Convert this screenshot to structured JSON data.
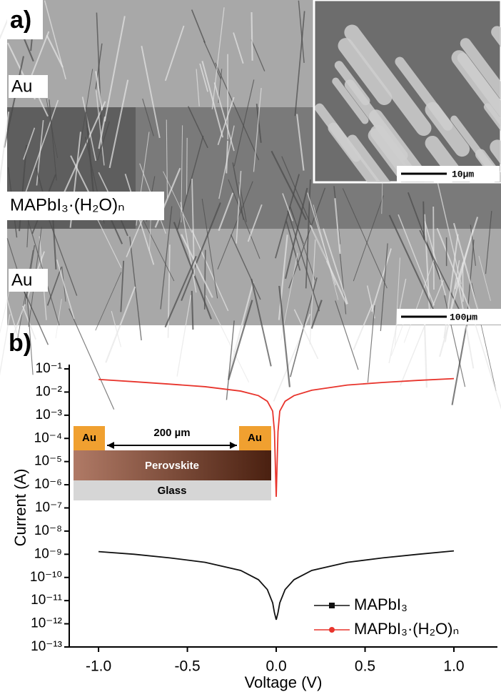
{
  "panel_a": {
    "label": "a)",
    "labels": [
      "Au",
      "MAPbI₃·(H₂O)ₙ",
      "Au"
    ],
    "inset_scale": "10µm",
    "scale": "100µm"
  },
  "chart_data": {
    "type": "line",
    "label": "b)",
    "x_label": "Voltage (V)",
    "y_label": "Current (A)",
    "x": [
      -1,
      -0.8,
      -0.6,
      -0.4,
      -0.2,
      -0.1,
      -0.05,
      -0.02,
      -0.01,
      0,
      0.01,
      0.02,
      0.05,
      0.1,
      0.2,
      0.4,
      0.6,
      0.8,
      1
    ],
    "series": [
      {
        "name": "MAPbI₃",
        "color": "#111111",
        "marker": "square",
        "values": [
          1.3e-09,
          1e-09,
          7e-10,
          4.5e-10,
          2e-10,
          8e-11,
          3e-11,
          8e-12,
          3e-12,
          1.5e-12,
          3e-12,
          8e-12,
          3e-11,
          8e-11,
          2e-10,
          4.5e-10,
          7e-10,
          1e-09,
          1.4e-09
        ]
      },
      {
        "name": "MAPbI₃·(H₂O)ₙ",
        "color": "#e8342c",
        "marker": "circle",
        "values": [
          0.035,
          0.028,
          0.022,
          0.017,
          0.011,
          0.007,
          0.004,
          0.0015,
          0.0002,
          3e-07,
          0.0002,
          0.0015,
          0.004,
          0.007,
          0.012,
          0.02,
          0.026,
          0.032,
          0.038
        ]
      }
    ],
    "xlim": [
      -1.165,
      1.245
    ],
    "xticks": [
      {
        "value": -1,
        "label": "-1.0"
      },
      {
        "value": -0.5,
        "label": "-0.5"
      },
      {
        "value": 0,
        "label": "0.0"
      },
      {
        "value": 0.5,
        "label": "0.5"
      },
      {
        "value": 1,
        "label": "1.0"
      }
    ],
    "ylim": [
      1e-13,
      0.1
    ],
    "log_y": true,
    "yticks": [
      {
        "value": 0.1,
        "label": "10⁻¹"
      },
      {
        "value": 0.01,
        "label": "10⁻²"
      },
      {
        "value": 0.001,
        "label": "10⁻³"
      },
      {
        "value": 0.0001,
        "label": "10⁻⁴"
      },
      {
        "value": 1e-05,
        "label": "10⁻⁵"
      },
      {
        "value": 1e-06,
        "label": "10⁻⁶"
      },
      {
        "value": 1e-07,
        "label": "10⁻⁷"
      },
      {
        "value": 1e-08,
        "label": "10⁻⁸"
      },
      {
        "value": 1e-09,
        "label": "10⁻⁹"
      },
      {
        "value": 1e-10,
        "label": "10⁻¹⁰"
      },
      {
        "value": 1e-11,
        "label": "10⁻¹¹"
      },
      {
        "value": 1e-12,
        "label": "10⁻¹²"
      },
      {
        "value": 1e-13,
        "label": "10⁻¹³"
      }
    ],
    "legend": "lower right",
    "inset": {
      "left_contact": "Au",
      "right_contact": "Au",
      "gap": "200 µm",
      "layer": "Perovskite",
      "substrate": "Glass"
    }
  }
}
